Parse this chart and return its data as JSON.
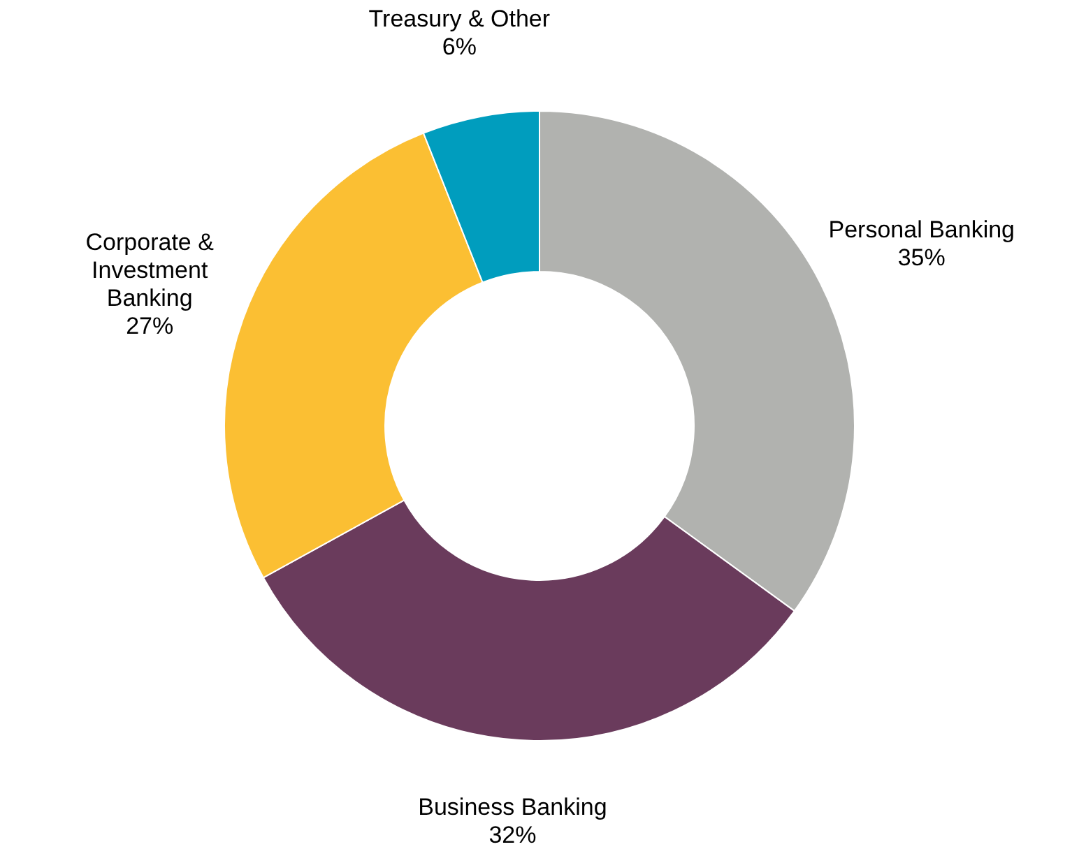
{
  "chart_data": {
    "type": "donut",
    "categories": [
      "Personal Banking",
      "Business Banking",
      "Corporate & Investment Banking",
      "Treasury & Other"
    ],
    "values": [
      35,
      32,
      27,
      6
    ],
    "colors": [
      "#b1b2af",
      "#6a3b5c",
      "#fbbf33",
      "#009dbe"
    ],
    "value_labels": [
      "35%",
      "32%",
      "27%",
      "6%"
    ],
    "legend": false
  }
}
